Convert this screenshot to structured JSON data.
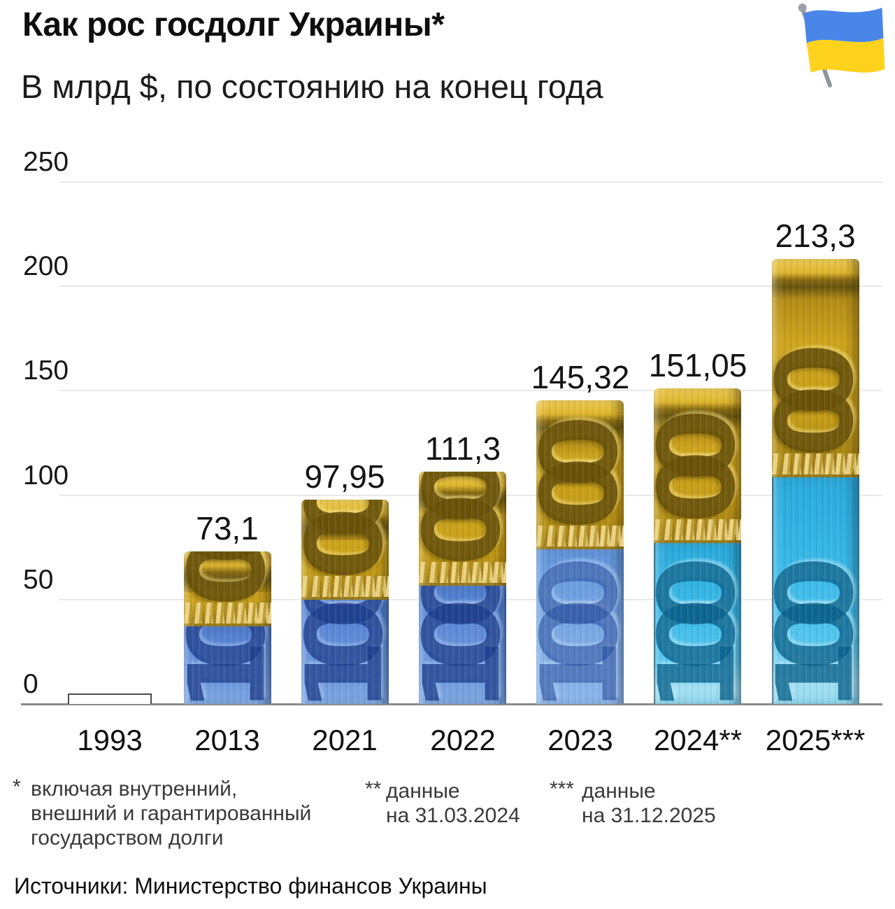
{
  "header": {
    "title": "Как рос госдолг Украины*",
    "subtitle": "В млрд $, по состоянию на конец года",
    "flag_icon": "ukraine-flag-icon"
  },
  "chart_data": {
    "type": "bar",
    "title": "Как рос госдолг Украины*",
    "subtitle": "В млрд $, по состоянию на конец года",
    "unit": "млрд $",
    "categories": [
      "1993",
      "2013",
      "2021",
      "2022",
      "2023",
      "2024**",
      "2025***"
    ],
    "values": [
      5,
      73.1,
      97.95,
      111.3,
      145.32,
      151.05,
      213.3
    ],
    "bar_value_labels": [
      "",
      "73,1",
      "97,95",
      "111,3",
      "145,32",
      "151,05",
      "213,3"
    ],
    "yticks": [
      0,
      50,
      100,
      150,
      200,
      250
    ],
    "ylim": [
      0,
      250
    ],
    "grid": true,
    "legend_position": "none",
    "bar_styles": [
      "outline",
      "roll-blue",
      "roll-blue",
      "roll-blue",
      "roll-lightblue",
      "roll-cyan",
      "roll-cyan"
    ],
    "banknote_digits": "100"
  },
  "colors": {
    "gold": "#cda41c",
    "blue": "#5c86d3",
    "light_blue": "#74a5e0",
    "cyan": "#38b9e8",
    "flag_blue": "#4a86e8",
    "flag_yellow": "#ffd21e",
    "grid_line": "#e8e8e8",
    "axis_line": "#8a8a8a",
    "text": "#141414",
    "footnote_text": "#3a3a3a"
  },
  "footnotes": [
    {
      "marker": "*",
      "lines": [
        "включая внутренний,",
        "внешний и гарантированный",
        "государством долги"
      ]
    },
    {
      "marker": "**",
      "lines": [
        "данные",
        "на 31.03.2024"
      ]
    },
    {
      "marker": "***",
      "lines": [
        "данные",
        "на 31.12.2025"
      ]
    }
  ],
  "source": "Источники: Министерство финансов Украины"
}
